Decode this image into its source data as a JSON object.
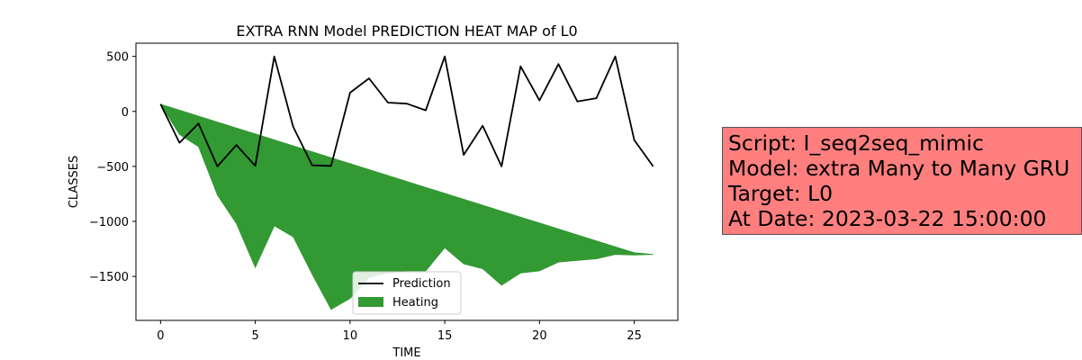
{
  "chart_data": {
    "type": "line",
    "title": "EXTRA RNN Model PREDICTION HEAT MAP of L0",
    "xlabel": "TIME",
    "ylabel": "CLASSES",
    "xlim": [
      -1.3,
      27.3
    ],
    "ylim": [
      -1900,
      620
    ],
    "xticks": [
      0,
      5,
      10,
      15,
      20,
      25
    ],
    "xtick_labels": [
      "0",
      "5",
      "10",
      "15",
      "20",
      "25"
    ],
    "yticks": [
      500,
      0,
      -500,
      -1000,
      -1500
    ],
    "ytick_labels": [
      "500",
      "0",
      "−500",
      "−1000",
      "−1500"
    ],
    "grid": false,
    "legend_position": "lower-center",
    "x": [
      0,
      1,
      2,
      3,
      4,
      5,
      6,
      7,
      8,
      9,
      10,
      11,
      12,
      13,
      14,
      15,
      16,
      17,
      18,
      19,
      20,
      21,
      22,
      23,
      24,
      25,
      26
    ],
    "series": [
      {
        "name": "Prediction",
        "kind": "line",
        "color": "#000000",
        "values": [
          65,
          -285,
          -110,
          -500,
          -305,
          -495,
          500,
          -140,
          -490,
          -495,
          170,
          300,
          80,
          70,
          10,
          500,
          -395,
          -130,
          -500,
          410,
          100,
          430,
          90,
          120,
          500,
          -260,
          -500
        ]
      },
      {
        "name": "Heating",
        "kind": "area",
        "color": "#339933",
        "upper": [
          65,
          11,
          -43,
          -97,
          -151,
          -205,
          -259,
          -313,
          -367,
          -421,
          -475,
          -529,
          -583,
          -637,
          -691,
          -745,
          -799,
          -853,
          -907,
          -961,
          -1015,
          -1069,
          -1123,
          -1177,
          -1231,
          -1285,
          -1300
        ],
        "lower": [
          65,
          -210,
          -320,
          -760,
          -1020,
          -1420,
          -1040,
          -1140,
          -1480,
          -1800,
          -1700,
          -1510,
          -1470,
          -1450,
          -1450,
          -1240,
          -1385,
          -1430,
          -1580,
          -1470,
          -1450,
          -1370,
          -1355,
          -1340,
          -1300,
          -1305,
          -1300
        ]
      }
    ]
  },
  "info": {
    "script": "Script: I_seq2seq_mimic",
    "model": "Model: extra Many to Many GRU",
    "target": "Target: L0",
    "date": "At Date: 2023-03-22 15:00:00"
  }
}
